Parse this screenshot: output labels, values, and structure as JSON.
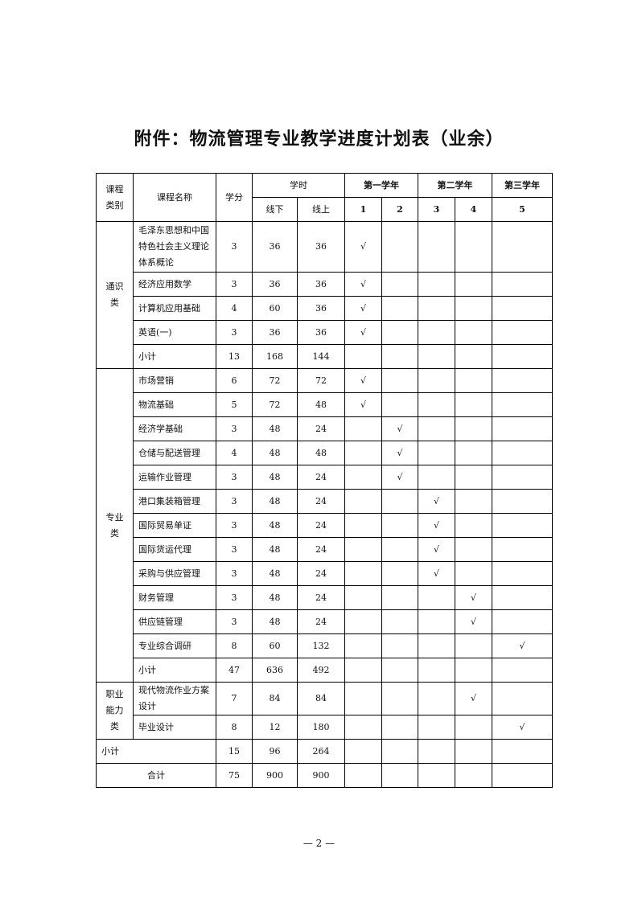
{
  "title": "附件：物流管理专业教学进度计划表（业余）",
  "header": {
    "category": "课程类别",
    "course_name": "课程名称",
    "credits": "学分",
    "hours": "学时",
    "offline": "线下",
    "online": "线上",
    "years": [
      "第一学年",
      "第二学年",
      "第三学年"
    ],
    "semesters": [
      "1",
      "2",
      "3",
      "4",
      "5"
    ]
  },
  "check_mark": "√",
  "groups": [
    {
      "category": "通识类",
      "rows": [
        {
          "name": "毛泽东思想和中国特色社会主义理论体系概论",
          "credits": "3",
          "offline": "36",
          "online": "36",
          "semester": 1
        },
        {
          "name": "经济应用数学",
          "credits": "3",
          "offline": "36",
          "online": "36",
          "semester": 1
        },
        {
          "name": "计算机应用基础",
          "credits": "4",
          "offline": "60",
          "online": "36",
          "semester": 1
        },
        {
          "name": "英语(一)",
          "credits": "3",
          "offline": "36",
          "online": "36",
          "semester": 1
        },
        {
          "name": "小计",
          "credits": "13",
          "offline": "168",
          "online": "144",
          "semester": 0
        }
      ]
    },
    {
      "category": "专业类",
      "rows": [
        {
          "name": "市场营销",
          "credits": "6",
          "offline": "72",
          "online": "72",
          "semester": 1
        },
        {
          "name": "物流基础",
          "credits": "5",
          "offline": "72",
          "online": "48",
          "semester": 1
        },
        {
          "name": "经济学基础",
          "credits": "3",
          "offline": "48",
          "online": "24",
          "semester": 2
        },
        {
          "name": "仓储与配送管理",
          "credits": "4",
          "offline": "48",
          "online": "48",
          "semester": 2
        },
        {
          "name": "运输作业管理",
          "credits": "3",
          "offline": "48",
          "online": "24",
          "semester": 2
        },
        {
          "name": "港口集装箱管理",
          "credits": "3",
          "offline": "48",
          "online": "24",
          "semester": 3
        },
        {
          "name": "国际贸易单证",
          "credits": "3",
          "offline": "48",
          "online": "24",
          "semester": 3
        },
        {
          "name": "国际货运代理",
          "credits": "3",
          "offline": "48",
          "online": "24",
          "semester": 3
        },
        {
          "name": "采购与供应管理",
          "credits": "3",
          "offline": "48",
          "online": "24",
          "semester": 3
        },
        {
          "name": "财务管理",
          "credits": "3",
          "offline": "48",
          "online": "24",
          "semester": 4
        },
        {
          "name": "供应链管理",
          "credits": "3",
          "offline": "48",
          "online": "24",
          "semester": 4
        },
        {
          "name": "专业综合调研",
          "credits": "8",
          "offline": "60",
          "online": "132",
          "semester": 5
        },
        {
          "name": "小计",
          "credits": "47",
          "offline": "636",
          "online": "492",
          "semester": 0
        }
      ]
    },
    {
      "category": "职业能力类",
      "rows": [
        {
          "name": "现代物流作业方案设计",
          "credits": "7",
          "offline": "84",
          "online": "84",
          "semester": 4
        },
        {
          "name": "毕业设计",
          "credits": "8",
          "offline": "12",
          "online": "180",
          "semester": 5
        }
      ]
    }
  ],
  "subtotal": {
    "name": "小计",
    "credits": "15",
    "offline": "96",
    "online": "264"
  },
  "total": {
    "name": "合计",
    "credits": "75",
    "offline": "900",
    "online": "900"
  },
  "footer": "— 2 —"
}
